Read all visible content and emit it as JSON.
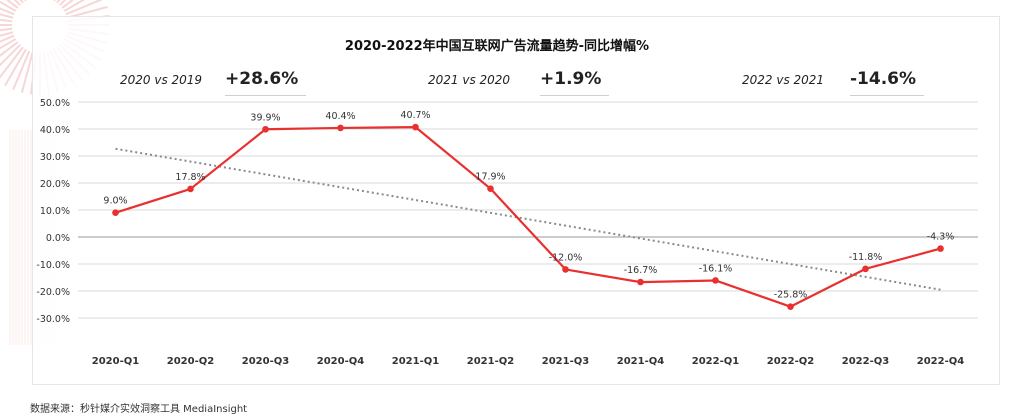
{
  "source": "数据来源：秒针媒介实效洞察工具 MediaInsight",
  "comparisons": [
    {
      "label": "2020 vs 2019",
      "value": "+28.6%"
    },
    {
      "label": "2021 vs 2020",
      "value": "+1.9%"
    },
    {
      "label": "2022 vs 2021",
      "value": "-14.6%"
    }
  ],
  "colors": {
    "line": "#e8302f",
    "trend": "#8a8a8a",
    "grid": "#d9d9d9",
    "text": "#222222"
  },
  "chart_data": {
    "type": "line",
    "title": "2020-2022年中国互联网广告流量趋势-同比增幅%",
    "xlabel": "",
    "ylabel": "",
    "categories": [
      "2020-Q1",
      "2020-Q2",
      "2020-Q3",
      "2020-Q4",
      "2021-Q1",
      "2021-Q2",
      "2021-Q3",
      "2021-Q4",
      "2022-Q1",
      "2022-Q2",
      "2022-Q3",
      "2022-Q4"
    ],
    "series": [
      {
        "values": [
          9.0,
          17.8,
          39.9,
          40.4,
          40.7,
          17.9,
          -12.0,
          -16.7,
          -16.1,
          -25.8,
          -11.8,
          -4.3
        ]
      }
    ],
    "data_labels": [
      "9.0%",
      "17.8%",
      "39.9%",
      "40.4%",
      "40.7%",
      "17.9%",
      "-12.0%",
      "-16.7%",
      "-16.1%",
      "-25.8%",
      "-11.8%",
      "-4.3%"
    ],
    "trendline": {
      "style": "dotted",
      "type": "linear"
    },
    "yticks": [
      "50.0%",
      "40.0%",
      "30.0%",
      "20.0%",
      "10.0%",
      "0.0%",
      "-10.0%",
      "-20.0%",
      "-30.0%"
    ],
    "ylim": [
      -30,
      50
    ],
    "grid": true,
    "legend": "none"
  }
}
